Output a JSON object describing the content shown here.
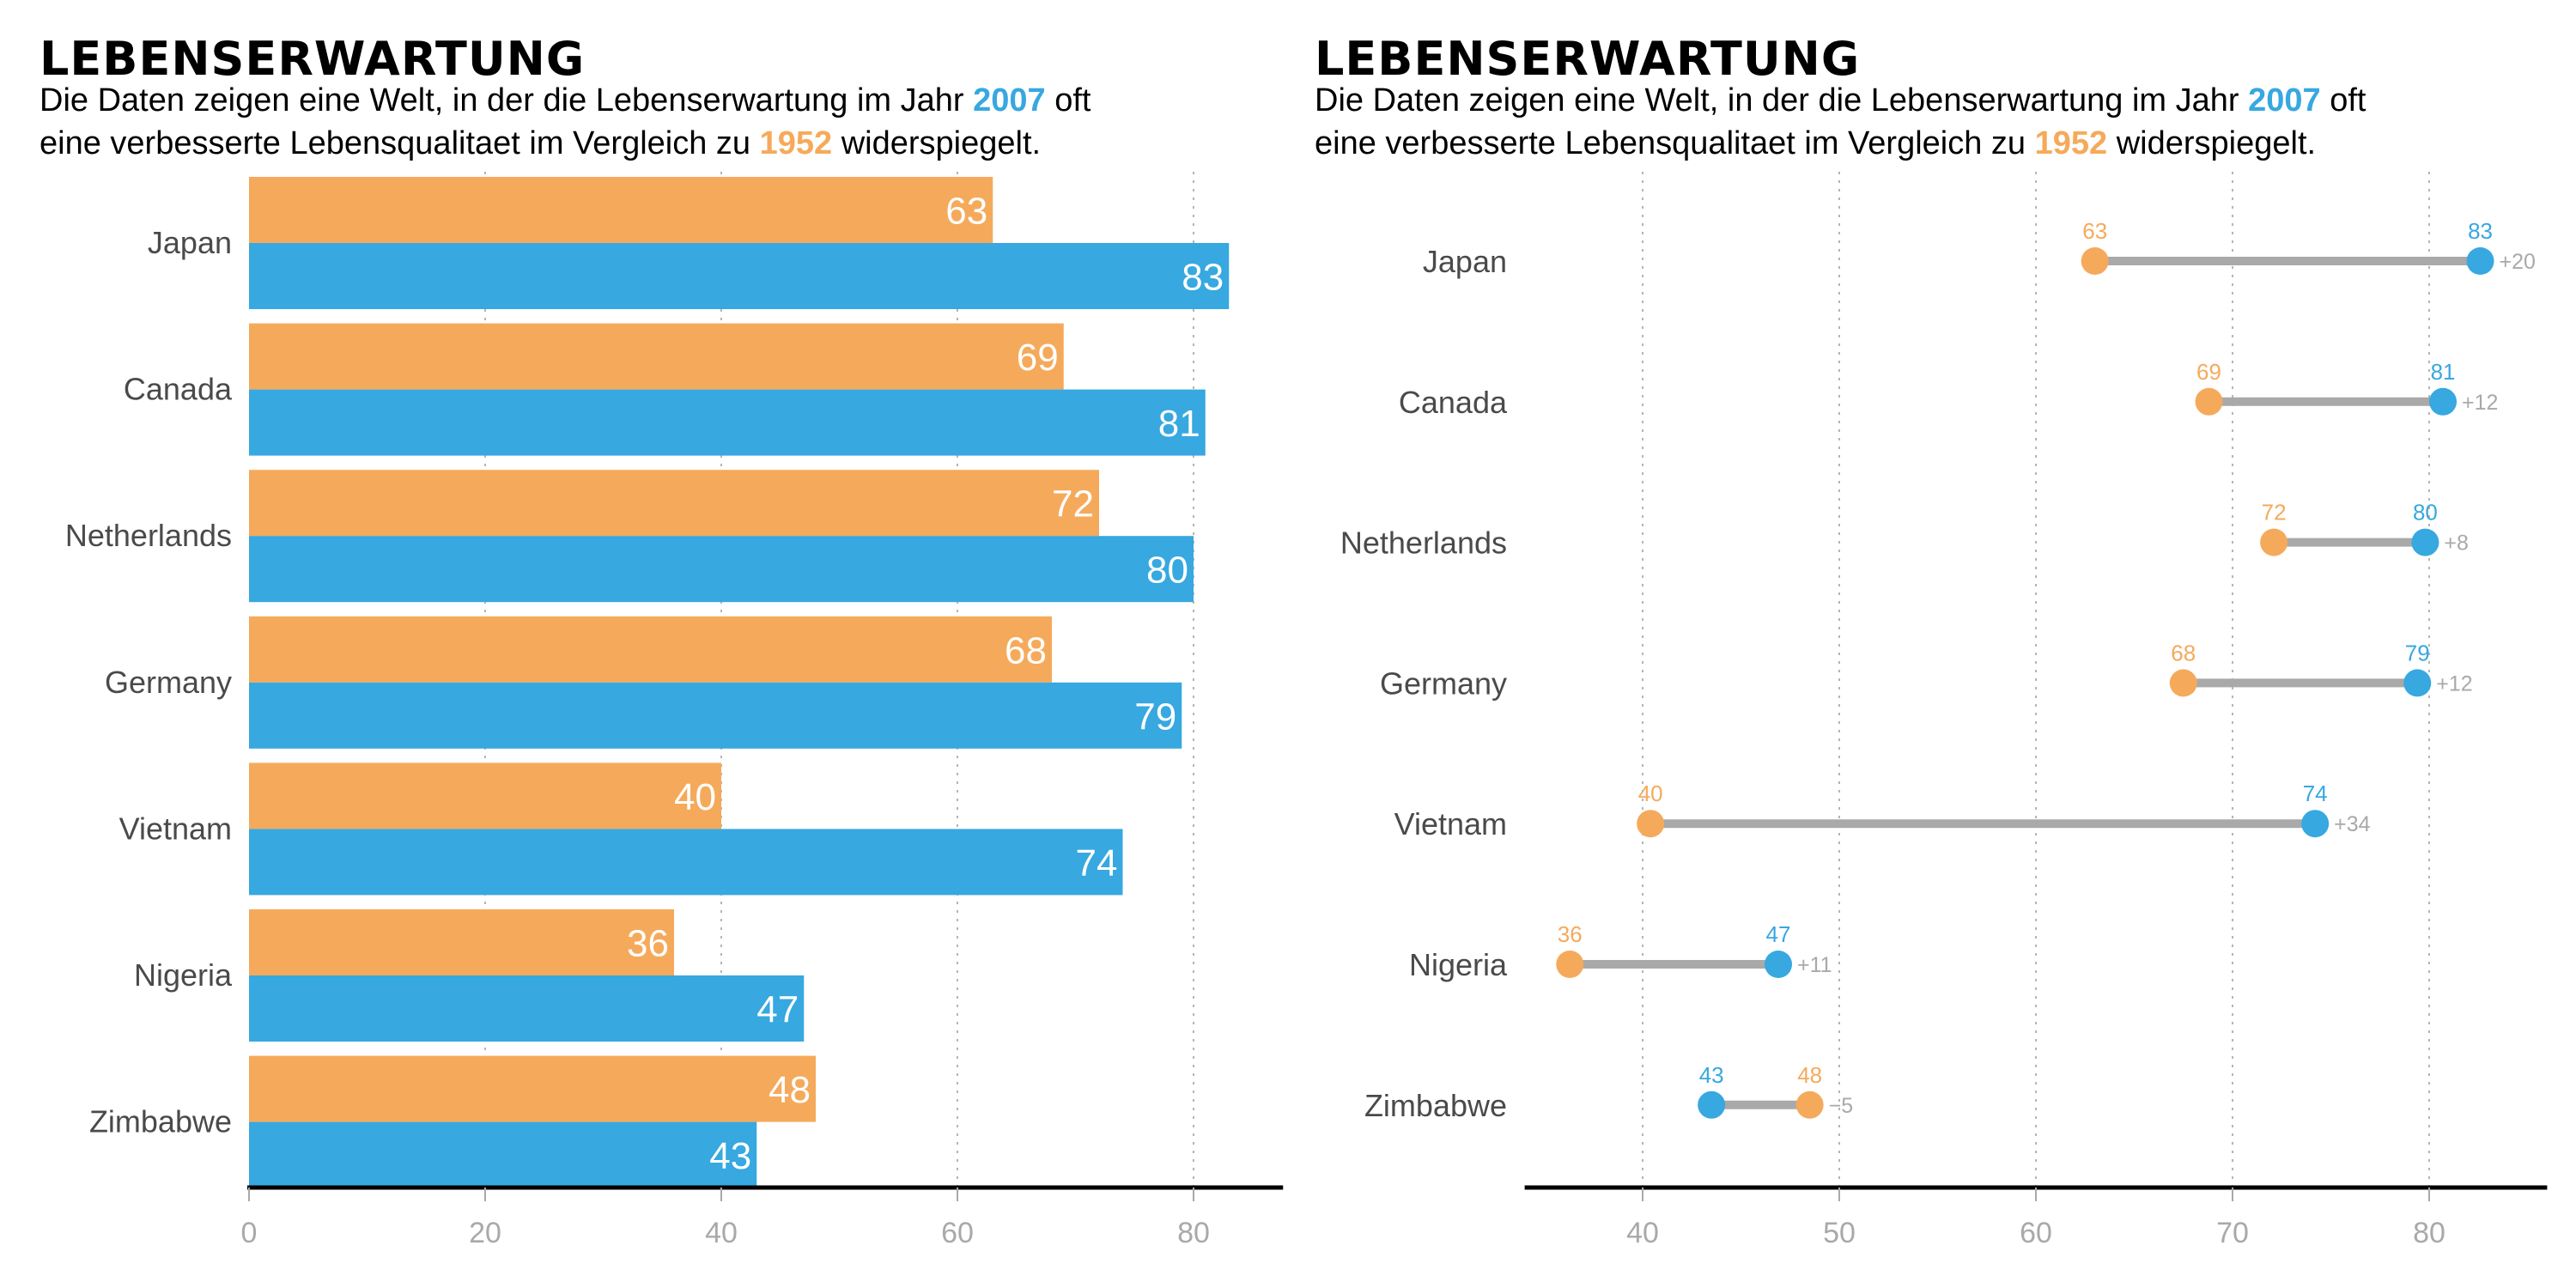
{
  "colors": {
    "year_1952": "#f5aa5b",
    "year_2007": "#37a8e0",
    "connector": "#a9a9a9",
    "country_label": "#4a4a4a",
    "tick_label": "#a9a9a9",
    "grid": "#b5b5b5",
    "axis": "#000000"
  },
  "panels": [
    {
      "title": "LEBENSERWARTUNG",
      "subtitle_line1_pre": "Die Daten zeigen eine Welt, in der die Lebenserwartung im Jahr ",
      "subtitle_line1_highlight": "2007",
      "subtitle_line1_post": " oft",
      "subtitle_line2_pre": "eine verbesserte Lebensqualitaet im Vergleich zu ",
      "subtitle_line2_highlight": "1952",
      "subtitle_line2_post": " widerspiegelt."
    },
    {
      "title": "LEBENSERWARTUNG",
      "subtitle_line1_pre": "Die Daten zeigen eine Welt, in der die Lebenserwartung im Jahr ",
      "subtitle_line1_highlight": "2007",
      "subtitle_line1_post": " oft",
      "subtitle_line2_pre": "eine verbesserte Lebensqualitaet im Vergleich zu ",
      "subtitle_line2_highlight": "1952",
      "subtitle_line2_post": " widerspiegelt."
    }
  ],
  "chart_data": [
    {
      "type": "bar",
      "orientation": "horizontal",
      "title": "LEBENSERWARTUNG",
      "xlabel": "",
      "ylabel": "",
      "categories": [
        "Japan",
        "Canada",
        "Netherlands",
        "Germany",
        "Vietnam",
        "Nigeria",
        "Zimbabwe"
      ],
      "series": [
        {
          "name": "1952",
          "values": [
            63,
            69,
            72,
            68,
            40,
            36,
            48
          ]
        },
        {
          "name": "2007",
          "values": [
            83,
            81,
            80,
            79,
            74,
            47,
            43
          ]
        }
      ],
      "xlim": [
        0,
        87
      ],
      "xticks": [
        0,
        20,
        40,
        60,
        80
      ],
      "grid": "vertical dotted",
      "data_labels": "inside bar end, white",
      "legend": "none (encoded in subtitle colors)"
    },
    {
      "type": "scatter",
      "variant": "dumbbell",
      "title": "LEBENSERWARTUNG",
      "xlabel": "",
      "ylabel": "",
      "categories": [
        "Japan",
        "Canada",
        "Netherlands",
        "Germany",
        "Vietnam",
        "Nigeria",
        "Zimbabwe"
      ],
      "series": [
        {
          "name": "1952",
          "values": [
            63.0,
            68.8,
            72.1,
            67.5,
            40.4,
            36.3,
            48.5
          ],
          "labels": [
            "63",
            "69",
            "72",
            "68",
            "40",
            "36",
            "48"
          ]
        },
        {
          "name": "2007",
          "values": [
            82.6,
            80.7,
            79.8,
            79.4,
            74.2,
            46.9,
            43.5
          ],
          "labels": [
            "83",
            "81",
            "80",
            "79",
            "74",
            "47",
            "43"
          ]
        }
      ],
      "differences": [
        "+20",
        "+12",
        "+8",
        "+12",
        "+34",
        "+11",
        "−5"
      ],
      "xlim": [
        34,
        86
      ],
      "xticks": [
        40,
        50,
        60,
        70,
        80
      ],
      "grid": "vertical dotted",
      "legend": "none (encoded in subtitle colors)"
    }
  ]
}
